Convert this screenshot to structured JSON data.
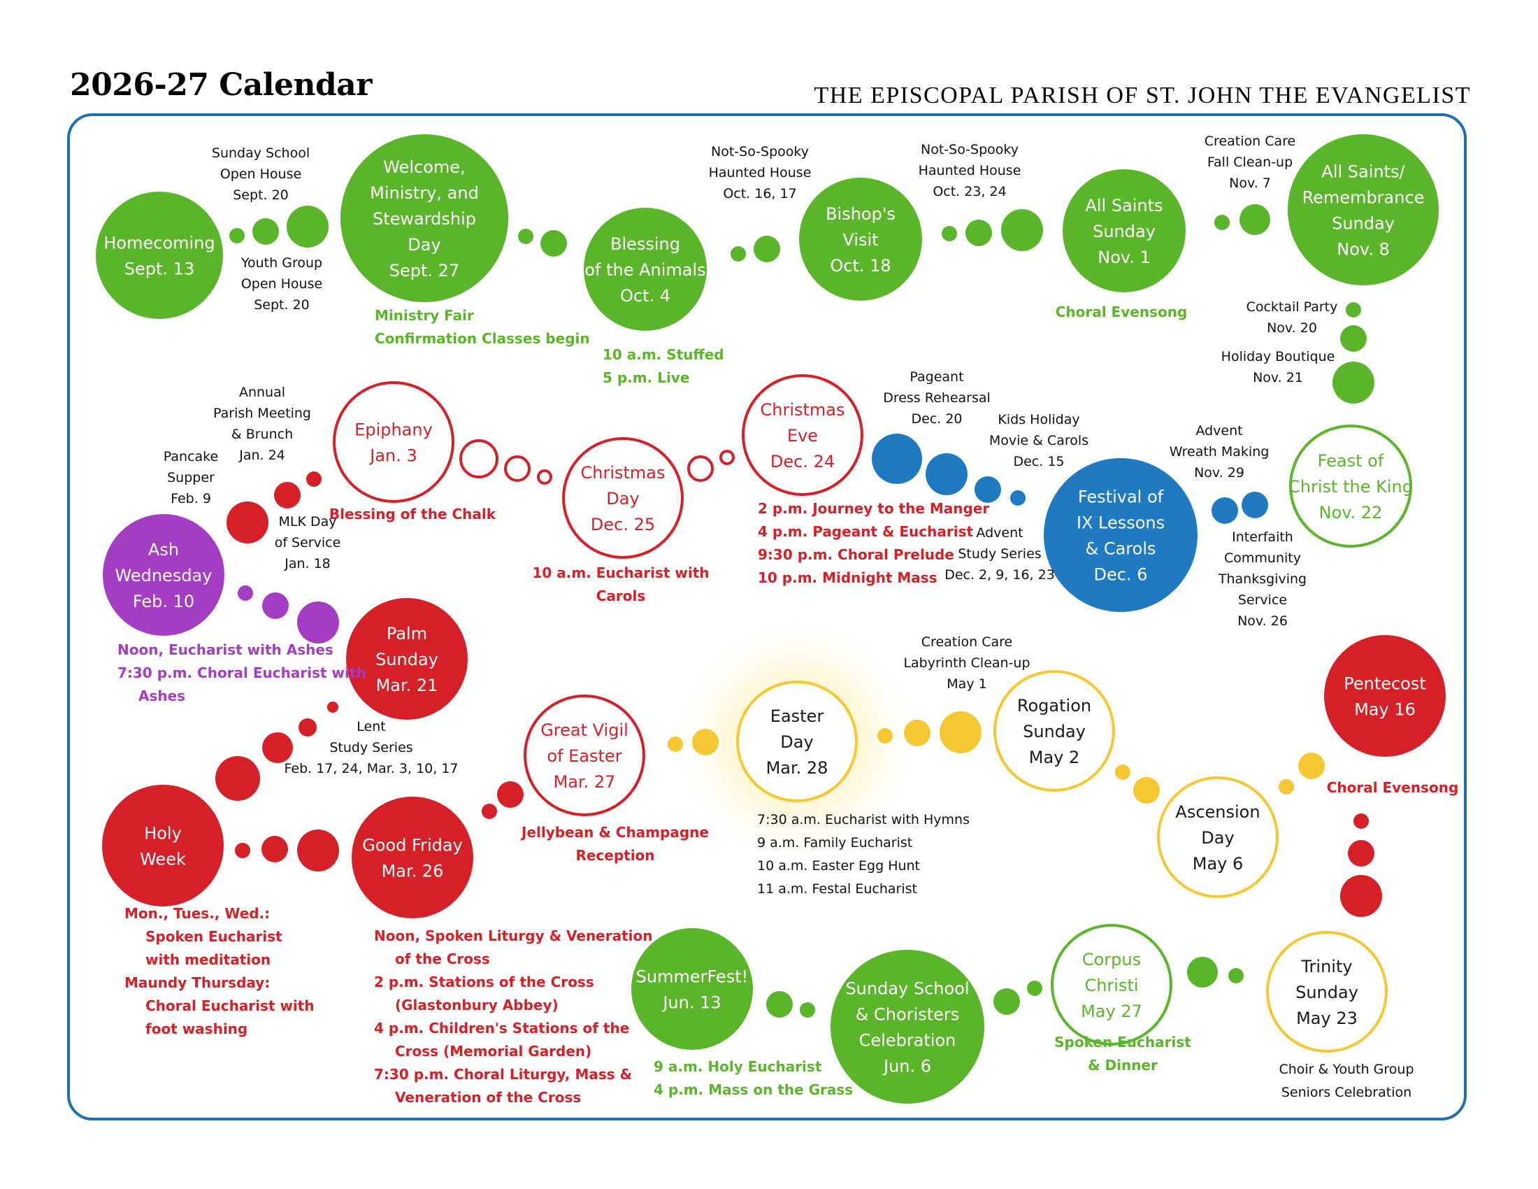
{
  "header": {
    "title": "2026-27 Calendar",
    "parish": "THE EPISCOPAL PARISH OF ST. JOHN THE EVANGELIST"
  },
  "colors": {
    "green": "#5ab52b",
    "red": "#d62027",
    "blue": "#1f7ac2",
    "purple": "#a43cc4",
    "yellow": "#f4c733",
    "frame": "#1f6fb3"
  },
  "events": [
    {
      "id": "homecoming",
      "lines": [
        "Homecoming",
        "Sept. 13"
      ]
    },
    {
      "id": "welcome-ministry-stewardship",
      "lines": [
        "Welcome,",
        "Ministry, and",
        "Stewardship",
        "Day",
        "Sept. 27"
      ]
    },
    {
      "id": "blessing-animals",
      "lines": [
        "Blessing",
        "of the Animals",
        "Oct. 4"
      ]
    },
    {
      "id": "bishops-visit",
      "lines": [
        "Bishop's",
        "Visit",
        "Oct. 18"
      ]
    },
    {
      "id": "all-saints-sunday",
      "lines": [
        "All Saints",
        "Sunday",
        "Nov. 1"
      ]
    },
    {
      "id": "all-saints-remembrance",
      "lines": [
        "All Saints/",
        "Remembrance",
        "Sunday",
        "Nov. 8"
      ]
    },
    {
      "id": "feast-christ-king",
      "lines": [
        "Feast of",
        "Christ the King",
        "Nov. 22"
      ]
    },
    {
      "id": "festival-lessons-carols",
      "lines": [
        "Festival of",
        "IX Lessons",
        "& Carols",
        "Dec. 6"
      ]
    },
    {
      "id": "christmas-eve",
      "lines": [
        "Christmas",
        "Eve",
        "Dec. 24"
      ]
    },
    {
      "id": "christmas-day",
      "lines": [
        "Christmas",
        "Day",
        "Dec. 25"
      ]
    },
    {
      "id": "epiphany",
      "lines": [
        "Epiphany",
        "Jan. 3"
      ]
    },
    {
      "id": "ash-wednesday",
      "lines": [
        "Ash",
        "Wednesday",
        "Feb. 10"
      ]
    },
    {
      "id": "palm-sunday",
      "lines": [
        "Palm",
        "Sunday",
        "Mar. 21"
      ]
    },
    {
      "id": "holy-week",
      "lines": [
        "Holy",
        "Week"
      ]
    },
    {
      "id": "good-friday",
      "lines": [
        "Good Friday",
        "Mar. 26"
      ]
    },
    {
      "id": "great-vigil",
      "lines": [
        "Great Vigil",
        "of Easter",
        "Mar. 27"
      ]
    },
    {
      "id": "easter-day",
      "lines": [
        "Easter",
        "Day",
        "Mar. 28"
      ]
    },
    {
      "id": "rogation-sunday",
      "lines": [
        "Rogation",
        "Sunday",
        "May 2"
      ]
    },
    {
      "id": "ascension-day",
      "lines": [
        "Ascension",
        "Day",
        "May 6"
      ]
    },
    {
      "id": "pentecost",
      "lines": [
        "Pentecost",
        "May 16"
      ]
    },
    {
      "id": "trinity-sunday",
      "lines": [
        "Trinity",
        "Sunday",
        "May 23"
      ]
    },
    {
      "id": "corpus-christi",
      "lines": [
        "Corpus",
        "Christi",
        "May 27"
      ]
    },
    {
      "id": "sunday-school-choristers",
      "lines": [
        "Sunday School",
        "& Choristers",
        "Celebration",
        "Jun. 6"
      ]
    },
    {
      "id": "summerfest",
      "lines": [
        "SummerFest!",
        "Jun. 13"
      ]
    }
  ],
  "notes": [
    {
      "id": "sunday-school-open-house",
      "lines": [
        "Sunday School",
        "Open House",
        "Sept. 20"
      ]
    },
    {
      "id": "youth-group-open-house",
      "lines": [
        "Youth Group",
        "Open House",
        "Sept. 20"
      ]
    },
    {
      "id": "ministry-fair",
      "lines": [
        "Ministry Fair",
        "Confirmation Classes begin"
      ]
    },
    {
      "id": "animals-times",
      "lines": [
        "10 a.m. Stuffed",
        "5 p.m. Live"
      ]
    },
    {
      "id": "haunted-house-1",
      "lines": [
        "Not-So-Spooky",
        "Haunted House",
        "Oct. 16, 17"
      ]
    },
    {
      "id": "haunted-house-2",
      "lines": [
        "Not-So-Spooky",
        "Haunted House",
        "Oct. 23, 24"
      ]
    },
    {
      "id": "choral-evensong-nov",
      "lines": [
        "Choral Evensong"
      ]
    },
    {
      "id": "creation-care-fall",
      "lines": [
        "Creation Care",
        "Fall Clean-up",
        "Nov. 7"
      ]
    },
    {
      "id": "cocktail-party",
      "lines": [
        "Cocktail Party",
        "Nov. 20"
      ]
    },
    {
      "id": "holiday-boutique",
      "lines": [
        "Holiday Boutique",
        "Nov. 21"
      ]
    },
    {
      "id": "advent-wreath",
      "lines": [
        "Advent",
        "Wreath Making",
        "Nov. 29"
      ]
    },
    {
      "id": "interfaith-thanksgiving",
      "lines": [
        "Interfaith",
        "Community",
        "Thanksgiving",
        "Service",
        "Nov. 26"
      ]
    },
    {
      "id": "pageant-rehearsal",
      "lines": [
        "Pageant",
        "Dress Rehearsal",
        "Dec. 20"
      ]
    },
    {
      "id": "kids-holiday-movie",
      "lines": [
        "Kids Holiday",
        "Movie & Carols",
        "Dec. 15"
      ]
    },
    {
      "id": "advent-study",
      "lines": [
        "Advent",
        "Study Series",
        "Dec. 2, 9, 16, 23"
      ]
    },
    {
      "id": "christmas-eve-times",
      "lines": [
        "2 p.m. Journey to the Manger",
        "4 p.m. Pageant & Eucharist",
        "9:30 p.m. Choral Prelude",
        "10 p.m. Midnight Mass"
      ]
    },
    {
      "id": "christmas-day-times",
      "lines": [
        "10 a.m. Eucharist with",
        "Carols"
      ]
    },
    {
      "id": "blessing-chalk",
      "lines": [
        "Blessing of the Chalk"
      ]
    },
    {
      "id": "annual-meeting",
      "lines": [
        "Annual",
        "Parish Meeting",
        "& Brunch",
        "Jan. 24"
      ]
    },
    {
      "id": "pancake-supper",
      "lines": [
        "Pancake",
        "Supper",
        "Feb. 9"
      ]
    },
    {
      "id": "mlk-day",
      "lines": [
        "MLK Day",
        "of Service",
        "Jan. 18"
      ]
    },
    {
      "id": "ash-wed-times",
      "lines": [
        "Noon, Eucharist with Ashes",
        "7:30 p.m. Choral Eucharist with",
        "Ashes"
      ]
    },
    {
      "id": "lent-study",
      "lines": [
        "Lent",
        "Study Series",
        "Feb. 17, 24, Mar. 3, 10, 17"
      ]
    },
    {
      "id": "holy-week-times",
      "lines": [
        "Mon., Tues., Wed.:",
        "Spoken Eucharist",
        "with meditation",
        "Maundy Thursday:",
        "Choral Eucharist with",
        "foot washing"
      ]
    },
    {
      "id": "good-friday-times",
      "lines": [
        "Noon, Spoken Liturgy & Veneration",
        "of the Cross",
        "2 p.m. Stations of the Cross",
        "(Glastonbury Abbey)",
        "4 p.m. Children's Stations of the",
        "Cross (Memorial Garden)",
        "7:30 p.m. Choral Liturgy, Mass &",
        "Veneration of the Cross"
      ]
    },
    {
      "id": "great-vigil-reception",
      "lines": [
        "Jellybean & Champagne",
        "Reception"
      ]
    },
    {
      "id": "easter-times",
      "lines": [
        "7:30 a.m. Eucharist with Hymns",
        "9 a.m. Family Eucharist",
        "10 a.m. Easter Egg Hunt",
        "11 a.m. Festal Eucharist"
      ]
    },
    {
      "id": "creation-care-labyrinth",
      "lines": [
        "Creation Care",
        "Labyrinth Clean-up",
        "May 1"
      ]
    },
    {
      "id": "choral-evensong-may",
      "lines": [
        "Choral Evensong"
      ]
    },
    {
      "id": "choir-youth-seniors",
      "lines": [
        "Choir & Youth Group",
        "Seniors Celebration"
      ]
    },
    {
      "id": "corpus-christi-dinner",
      "lines": [
        "Spoken Eucharist",
        "& Dinner"
      ]
    },
    {
      "id": "summerfest-times",
      "lines": [
        "9 a.m. Holy Eucharist",
        "4 p.m. Mass on the Grass"
      ]
    }
  ]
}
